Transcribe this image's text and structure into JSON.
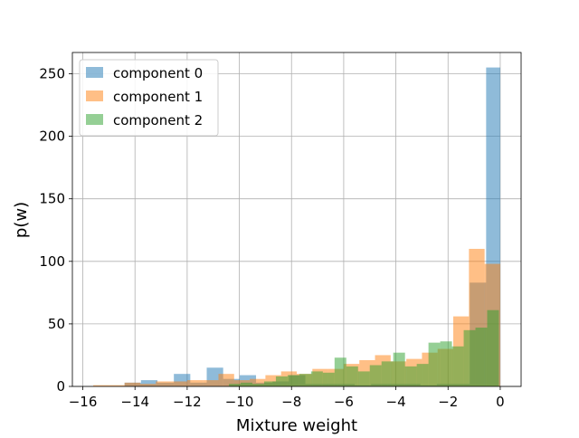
{
  "chart_data": {
    "type": "histogram",
    "title": "",
    "xlabel": "Mixture weight",
    "ylabel": "p(w)",
    "xlim": [
      -16.4,
      0.8
    ],
    "ylim": [
      0,
      267
    ],
    "xticks": [
      -16,
      -14,
      -12,
      -10,
      -8,
      -6,
      -4,
      -2,
      0
    ],
    "xtick_labels": [
      "−16",
      "−14",
      "−12",
      "−10",
      "−8",
      "−6",
      "−4",
      "−2",
      "0"
    ],
    "yticks": [
      0,
      50,
      100,
      150,
      200,
      250
    ],
    "ytick_labels": [
      "0",
      "50",
      "100",
      "150",
      "200",
      "250"
    ],
    "grid": true,
    "legend": {
      "placement": "upper-left"
    },
    "alpha": 0.5,
    "series": [
      {
        "name": "component 0",
        "color": "#1f77b4",
        "bin_edges": [
          -14.4,
          -13.77,
          -13.14,
          -12.51,
          -11.88,
          -11.25,
          -10.62,
          -9.99,
          -9.36,
          -8.73,
          -8.1,
          -7.47,
          -6.84,
          -6.21,
          -5.58,
          -4.95,
          -4.32,
          -3.69,
          -3.06,
          -2.43,
          -1.8,
          -1.17,
          -0.54,
          0.0
        ],
        "counts": [
          3,
          5,
          3,
          10,
          3,
          15,
          6,
          9,
          3,
          4,
          9,
          2,
          2,
          2,
          1,
          2,
          2,
          2,
          1,
          2,
          2,
          83,
          255
        ]
      },
      {
        "name": "component 1",
        "color": "#ff7f0e",
        "bin_edges": [
          -15.6,
          -15.0,
          -14.4,
          -13.8,
          -13.2,
          -12.6,
          -12.0,
          -11.4,
          -10.8,
          -10.2,
          -9.6,
          -9.0,
          -8.4,
          -7.8,
          -7.2,
          -6.6,
          -6.0,
          -5.4,
          -4.8,
          -4.2,
          -3.6,
          -3.0,
          -2.4,
          -1.8,
          -1.2,
          -0.6,
          0.0
        ],
        "counts": [
          1,
          1,
          3,
          2,
          4,
          4,
          5,
          5,
          10,
          5,
          6,
          9,
          12,
          10,
          14,
          14,
          18,
          21,
          25,
          20,
          22,
          27,
          30,
          56,
          110,
          98
        ]
      },
      {
        "name": "component 2",
        "color": "#2ca02c",
        "bin_edges": [
          -10.4,
          -9.95,
          -9.5,
          -9.05,
          -8.6,
          -8.15,
          -7.7,
          -7.25,
          -6.8,
          -6.35,
          -5.9,
          -5.45,
          -5.0,
          -4.55,
          -4.1,
          -3.65,
          -3.2,
          -2.75,
          -2.3,
          -1.85,
          -1.4,
          -0.95,
          -0.5,
          -0.05
        ],
        "counts": [
          2,
          3,
          2,
          4,
          8,
          9,
          10,
          12,
          11,
          23,
          16,
          12,
          17,
          20,
          27,
          16,
          18,
          35,
          36,
          32,
          45,
          47,
          61
        ]
      }
    ]
  }
}
